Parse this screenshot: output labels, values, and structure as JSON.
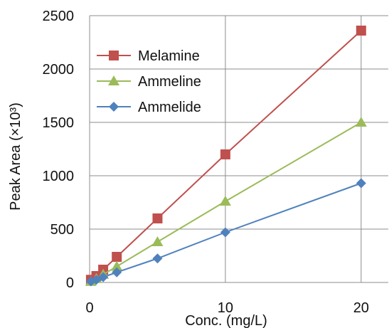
{
  "chart_data": {
    "type": "line",
    "xlabel": "Conc. (mg/L)",
    "ylabel": "Peak Area (×10³)",
    "xlim": [
      0,
      22
    ],
    "ylim": [
      0,
      2500
    ],
    "x_ticks": [
      0,
      10,
      20
    ],
    "y_ticks": [
      0,
      500,
      1000,
      1500,
      2000,
      2500
    ],
    "grid": true,
    "legend": "top-left",
    "series": [
      {
        "name": "Melamine",
        "color": "#c0504d",
        "marker": "square",
        "x": [
          0.1,
          0.5,
          1,
          2,
          5,
          10,
          20
        ],
        "y": [
          25,
          60,
          120,
          240,
          600,
          1200,
          2360
        ]
      },
      {
        "name": "Ammeline",
        "color": "#9bbb59",
        "marker": "triangle",
        "x": [
          0.1,
          0.5,
          1,
          2,
          5,
          10,
          20
        ],
        "y": [
          8,
          35,
          75,
          150,
          380,
          760,
          1500
        ]
      },
      {
        "name": "Ammelide",
        "color": "#4f81bd",
        "marker": "diamond",
        "x": [
          0.1,
          0.5,
          1,
          2,
          5,
          10,
          20
        ],
        "y": [
          10,
          25,
          50,
          95,
          225,
          470,
          930
        ]
      }
    ]
  }
}
